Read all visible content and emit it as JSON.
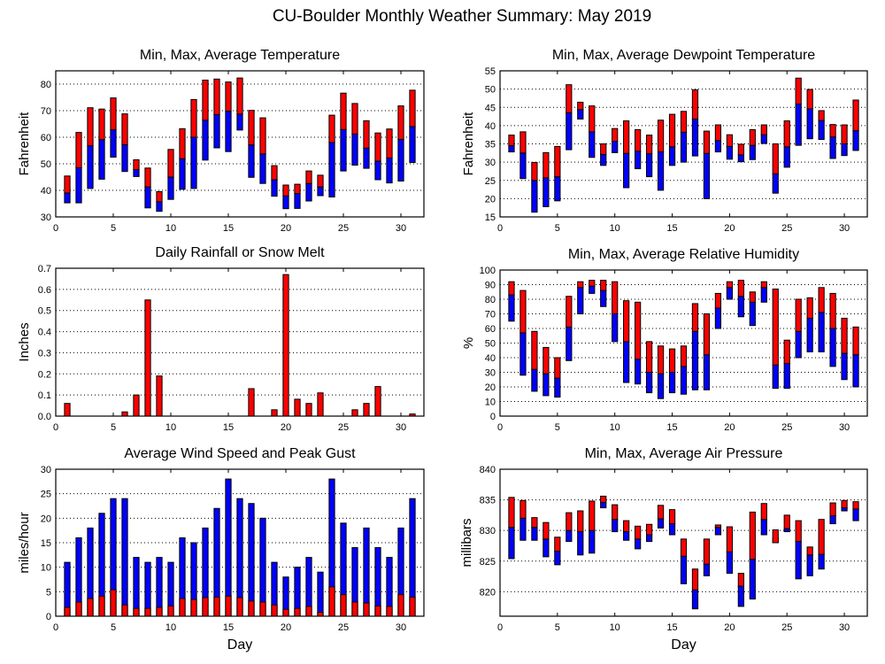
{
  "page_title": "CU-Boulder Monthly Weather Summary: May 2019",
  "colors": {
    "upper": "#ff0000",
    "lower": "#0000ff",
    "grid": "#000000",
    "frame": "#000000"
  },
  "chart_data": [
    {
      "id": "temperature",
      "type": "bar",
      "subtype": "floating-range-stacked",
      "title": "Min, Max, Average Temperature",
      "xlabel": "",
      "ylabel": "Fahrenheit",
      "xlim": [
        0,
        32
      ],
      "ylim": [
        30,
        85
      ],
      "xticks": [
        0,
        5,
        10,
        15,
        20,
        25,
        30
      ],
      "yticks": [
        30,
        40,
        50,
        60,
        70,
        80
      ],
      "grid": true,
      "x": [
        1,
        2,
        3,
        4,
        5,
        6,
        7,
        8,
        9,
        10,
        11,
        12,
        13,
        14,
        15,
        16,
        17,
        18,
        19,
        20,
        21,
        22,
        23,
        24,
        25,
        26,
        27,
        28,
        29,
        30,
        31
      ],
      "series": [
        {
          "name": "Min",
          "values": [
            35.3,
            35.3,
            40.7,
            44.2,
            52.5,
            47.1,
            45.2,
            33.4,
            32.1,
            36.6,
            40.4,
            40.7,
            51.4,
            56.0,
            54.6,
            62.7,
            44.9,
            42.6,
            37.8,
            33.1,
            33.2,
            36.0,
            38.0,
            37.5,
            47.3,
            49.5,
            48.3,
            44.0,
            42.8,
            43.5,
            50.5
          ]
        },
        {
          "name": "Average",
          "values": [
            39.0,
            48.5,
            56.8,
            59.1,
            62.8,
            57.2,
            47.8,
            41.3,
            35.7,
            45.0,
            51.9,
            60.0,
            66.4,
            68.5,
            69.8,
            68.7,
            57.1,
            53.7,
            44.0,
            37.9,
            38.8,
            42.6,
            41.3,
            58.0,
            62.9,
            61.2,
            55.9,
            51.0,
            52.2,
            59.2,
            64.0
          ]
        },
        {
          "name": "Max",
          "values": [
            45.4,
            61.8,
            71.1,
            70.6,
            74.8,
            68.8,
            51.5,
            48.4,
            39.5,
            55.4,
            63.2,
            74.2,
            81.5,
            81.9,
            80.8,
            82.3,
            70.1,
            67.3,
            49.3,
            42.0,
            42.3,
            47.3,
            45.7,
            68.3,
            76.6,
            72.7,
            66.2,
            61.6,
            63.1,
            71.8,
            77.7
          ]
        }
      ]
    },
    {
      "id": "dewpoint",
      "type": "bar",
      "subtype": "floating-range-stacked",
      "title": "Min, Max, Average Dewpoint Temperature",
      "xlabel": "",
      "ylabel": "Fahrenheit",
      "xlim": [
        0,
        32
      ],
      "ylim": [
        15,
        55
      ],
      "xticks": [
        0,
        5,
        10,
        15,
        20,
        25,
        30
      ],
      "yticks": [
        15,
        20,
        25,
        30,
        35,
        40,
        45,
        50,
        55
      ],
      "grid": true,
      "x": [
        1,
        2,
        3,
        4,
        5,
        6,
        7,
        8,
        9,
        10,
        11,
        12,
        13,
        14,
        15,
        16,
        17,
        18,
        19,
        20,
        21,
        22,
        23,
        24,
        25,
        26,
        27,
        28,
        29,
        30,
        31
      ],
      "series": [
        {
          "name": "Min",
          "values": [
            32.8,
            25.5,
            16.3,
            17.8,
            19.4,
            33.4,
            41.8,
            31.3,
            29.1,
            32.6,
            23.0,
            28.2,
            26.0,
            22.3,
            29.1,
            30.0,
            31.7,
            20.0,
            32.8,
            30.8,
            30.1,
            30.7,
            35.1,
            21.5,
            28.6,
            34.6,
            36.4,
            36.2,
            31.0,
            31.8,
            33.2
          ]
        },
        {
          "name": "Average",
          "values": [
            34.5,
            32.5,
            25.0,
            25.7,
            26.0,
            43.5,
            44.4,
            38.3,
            32.1,
            35.7,
            32.4,
            33.0,
            32.3,
            32.8,
            34.2,
            38.2,
            41.8,
            32.4,
            35.9,
            34.3,
            32.0,
            34.6,
            37.5,
            26.8,
            34.2,
            45.9,
            44.6,
            41.4,
            36.9,
            35.0,
            38.6
          ]
        },
        {
          "name": "Max",
          "values": [
            37.4,
            38.3,
            29.9,
            32.6,
            34.3,
            51.2,
            46.4,
            45.4,
            35.0,
            39.2,
            41.3,
            38.9,
            37.4,
            41.5,
            43.1,
            43.9,
            49.8,
            38.5,
            40.2,
            37.5,
            34.9,
            38.9,
            40.2,
            35.0,
            41.3,
            53.0,
            49.9,
            44.1,
            40.3,
            40.2,
            47.0
          ]
        }
      ]
    },
    {
      "id": "rainfall",
      "type": "bar",
      "title": "Daily Rainfall or Snow Melt",
      "xlabel": "",
      "ylabel": "Inches",
      "xlim": [
        0,
        32
      ],
      "ylim": [
        0,
        0.7
      ],
      "xticks": [
        0,
        5,
        10,
        15,
        20,
        25,
        30
      ],
      "yticks": [
        0.0,
        0.1,
        0.2,
        0.3,
        0.4,
        0.5,
        0.6,
        0.7
      ],
      "ytick_labels": [
        "0.0",
        "0.1",
        "0.2",
        "0.3",
        "0.4",
        "0.5",
        "0.6",
        "0.7"
      ],
      "grid": true,
      "x": [
        1,
        2,
        3,
        4,
        5,
        6,
        7,
        8,
        9,
        10,
        11,
        12,
        13,
        14,
        15,
        16,
        17,
        18,
        19,
        20,
        21,
        22,
        23,
        24,
        25,
        26,
        27,
        28,
        29,
        30,
        31
      ],
      "values": [
        0.06,
        0,
        0,
        0,
        0,
        0.02,
        0.1,
        0.55,
        0.19,
        0,
        0,
        0,
        0,
        0,
        0,
        0,
        0.13,
        0,
        0.03,
        0.67,
        0.08,
        0.06,
        0.11,
        0,
        0,
        0.03,
        0.06,
        0.14,
        0,
        0,
        0.01
      ]
    },
    {
      "id": "humidity",
      "type": "bar",
      "subtype": "floating-range-stacked",
      "title": "Min, Max, Average Relative Humidity",
      "xlabel": "",
      "ylabel": "%",
      "xlim": [
        0,
        32
      ],
      "ylim": [
        0,
        100
      ],
      "xticks": [
        0,
        5,
        10,
        15,
        20,
        25,
        30
      ],
      "yticks": [
        0,
        10,
        20,
        30,
        40,
        50,
        60,
        70,
        80,
        90,
        100
      ],
      "grid": true,
      "x": [
        1,
        2,
        3,
        4,
        5,
        6,
        7,
        8,
        9,
        10,
        11,
        12,
        13,
        14,
        15,
        16,
        17,
        18,
        19,
        20,
        21,
        22,
        23,
        24,
        25,
        26,
        27,
        28,
        29,
        30,
        31
      ],
      "series": [
        {
          "name": "Min",
          "values": [
            65,
            28,
            17,
            14,
            13,
            38,
            70,
            84,
            75,
            51,
            23,
            22,
            16,
            12,
            16,
            15,
            18,
            18,
            60,
            80,
            68,
            62,
            78,
            19,
            19,
            40,
            44,
            44,
            34,
            25,
            20
          ]
        },
        {
          "name": "Average",
          "values": [
            83,
            57,
            32,
            29,
            26,
            61,
            88,
            89,
            86,
            70,
            51,
            39,
            30,
            29,
            30,
            34,
            58,
            42,
            74,
            88,
            82,
            78,
            88,
            35,
            36,
            58,
            67,
            71,
            60,
            43,
            42
          ]
        },
        {
          "name": "Max",
          "values": [
            92,
            86,
            58,
            47,
            40,
            82,
            92,
            93,
            93,
            92,
            79,
            78,
            51,
            48,
            46,
            48,
            77,
            70,
            84,
            92,
            93,
            85,
            92,
            87,
            52,
            80,
            81,
            88,
            84,
            67,
            61
          ]
        }
      ]
    },
    {
      "id": "wind",
      "type": "bar",
      "subtype": "overlay",
      "title": "Average Wind Speed and Peak Gust",
      "xlabel": "Day",
      "ylabel": "miles/hour",
      "xlim": [
        0,
        32
      ],
      "ylim": [
        0,
        30
      ],
      "xticks": [
        0,
        5,
        10,
        15,
        20,
        25,
        30
      ],
      "yticks": [
        0,
        5,
        10,
        15,
        20,
        25,
        30
      ],
      "grid": true,
      "x": [
        1,
        2,
        3,
        4,
        5,
        6,
        7,
        8,
        9,
        10,
        11,
        12,
        13,
        14,
        15,
        16,
        17,
        18,
        19,
        20,
        21,
        22,
        23,
        24,
        25,
        26,
        27,
        28,
        29,
        30,
        31
      ],
      "series": [
        {
          "name": "Peak Gust",
          "values": [
            11,
            16,
            18,
            21,
            24,
            24,
            12,
            11,
            12,
            11,
            16,
            15,
            18,
            22,
            28,
            24,
            23,
            20,
            11,
            8,
            10,
            12,
            9,
            28,
            19,
            14,
            18,
            14,
            12,
            18,
            24
          ]
        },
        {
          "name": "Average Wind Speed",
          "values": [
            1.8,
            2.9,
            3.6,
            4.1,
            5.4,
            2.3,
            1.6,
            1.6,
            1.8,
            2.1,
            3.6,
            3.4,
            3.8,
            3.9,
            4.1,
            3.8,
            3.1,
            2.9,
            2.3,
            1.4,
            1.6,
            2.0,
            0.8,
            6.0,
            4.4,
            2.9,
            2.7,
            2.1,
            2.0,
            4.4,
            3.9
          ]
        }
      ]
    },
    {
      "id": "pressure",
      "type": "bar",
      "subtype": "floating-range-stacked",
      "title": "Min, Max, Average Air Pressure",
      "xlabel": "Day",
      "ylabel": "millibars",
      "xlim": [
        0,
        32
      ],
      "ylim": [
        816,
        840
      ],
      "xticks": [
        0,
        5,
        10,
        15,
        20,
        25,
        30
      ],
      "yticks": [
        820,
        825,
        830,
        835,
        840
      ],
      "grid": true,
      "x": [
        1,
        2,
        3,
        4,
        5,
        6,
        7,
        8,
        9,
        10,
        11,
        12,
        13,
        14,
        15,
        16,
        17,
        18,
        19,
        20,
        21,
        22,
        23,
        24,
        25,
        26,
        27,
        28,
        29,
        30,
        31
      ],
      "series": [
        {
          "name": "Min",
          "values": [
            825.4,
            828.4,
            828.4,
            825.7,
            824.4,
            828.2,
            826.0,
            826.3,
            833.7,
            829.8,
            828.4,
            827.0,
            828.2,
            830.4,
            829.3,
            821.3,
            817.2,
            822.6,
            829.3,
            823.0,
            817.6,
            818.8,
            829.3,
            828.8,
            829.8,
            822.1,
            822.6,
            823.7,
            831.1,
            833.2,
            831.6
          ]
        },
        {
          "name": "Average",
          "values": [
            830.5,
            832.0,
            830.5,
            828.6,
            826.6,
            830.0,
            829.8,
            830.0,
            834.6,
            831.8,
            829.8,
            828.6,
            829.3,
            831.9,
            831.1,
            825.8,
            820.3,
            824.5,
            830.5,
            826.5,
            820.9,
            825.3,
            831.8,
            828.0,
            830.3,
            828.2,
            826.0,
            826.1,
            832.4,
            833.7,
            833.5
          ]
        },
        {
          "name": "Max",
          "values": [
            835.4,
            834.9,
            832.1,
            831.3,
            828.9,
            832.9,
            833.2,
            834.8,
            835.6,
            834.2,
            831.6,
            830.7,
            831.0,
            834.1,
            833.4,
            828.6,
            823.7,
            828.6,
            830.9,
            830.6,
            823.0,
            833.0,
            834.4,
            830.1,
            832.5,
            831.6,
            827.3,
            831.8,
            834.5,
            834.9,
            834.7
          ]
        }
      ]
    }
  ]
}
